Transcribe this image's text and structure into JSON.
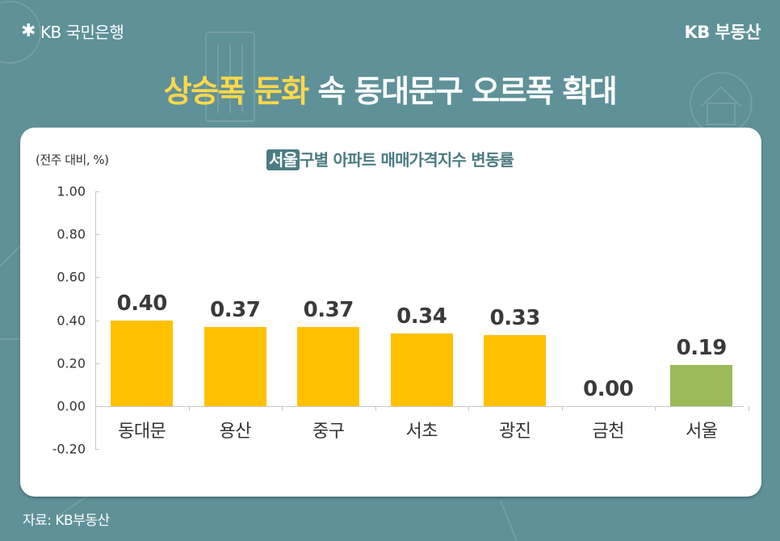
{
  "header": {
    "logo_left": {
      "icon": "kb-star-icon",
      "text": "KB 국민은행"
    },
    "logo_right": "KB 부동산",
    "headline_highlight": "상승폭 둔화",
    "headline_rest": " 속 동대문구 오르폭 확대"
  },
  "card": {
    "unit_label": "(전주 대비, %)",
    "title_tag": "서울",
    "title_rest": "구별 아파트 매매가격지수 변동률"
  },
  "colors": {
    "background": "#5f9198",
    "headline_highlight": "#ffd84a",
    "bar_district": "#ffc000",
    "bar_seoul": "#9bbb59",
    "title": "#4b7c83"
  },
  "chart_data": {
    "type": "bar",
    "title": "서울 구별 아파트 매매가격지수 변동률",
    "ylabel": "(전주 대비, %)",
    "xlabel": "",
    "categories": [
      "동대문",
      "용산",
      "중구",
      "서초",
      "광진",
      "금천",
      "서울"
    ],
    "values": [
      0.4,
      0.37,
      0.37,
      0.34,
      0.33,
      0.0,
      0.19
    ],
    "value_labels": [
      "0.40",
      "0.37",
      "0.37",
      "0.34",
      "0.33",
      "0.00",
      "0.19"
    ],
    "bar_colors": [
      "#ffc000",
      "#ffc000",
      "#ffc000",
      "#ffc000",
      "#ffc000",
      "#ffc000",
      "#9bbb59"
    ],
    "ylim": [
      -0.2,
      1.0
    ],
    "yticks": [
      "1.00",
      "0.80",
      "0.60",
      "0.40",
      "0.20",
      "0.00",
      "-0.20"
    ],
    "grid": false,
    "legend": "none"
  },
  "footer": {
    "source": "자료: KB부동산"
  }
}
